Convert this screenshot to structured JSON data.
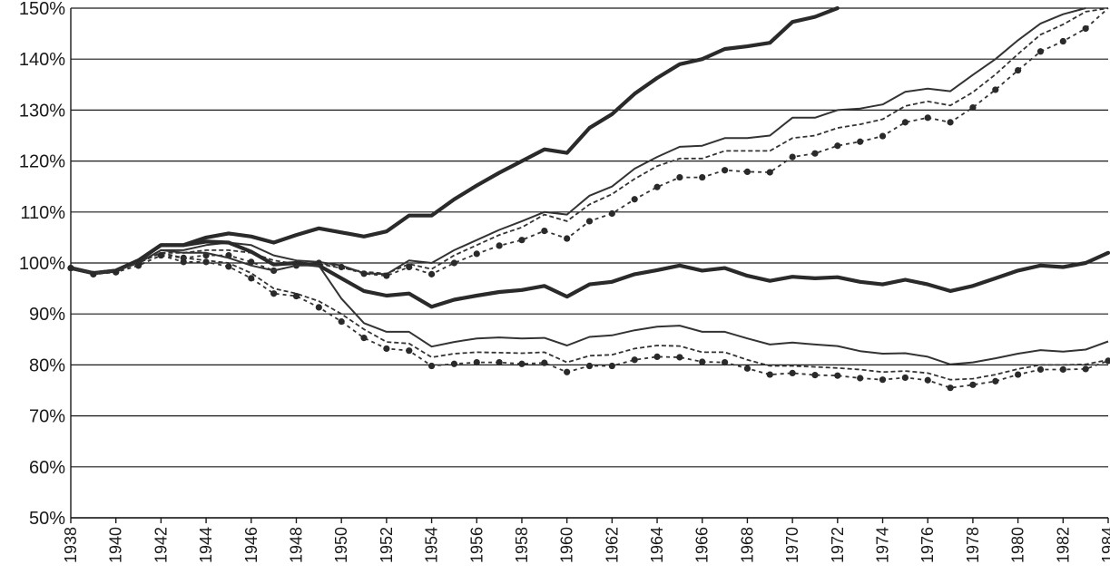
{
  "chart_data": {
    "type": "line",
    "title": "",
    "xlabel": "",
    "ylabel": "",
    "xlim": [
      1938,
      1984
    ],
    "ylim": [
      50,
      150
    ],
    "y_ticks": [
      "50%",
      "60%",
      "70%",
      "80%",
      "90%",
      "100%",
      "110%",
      "120%",
      "130%",
      "140%",
      "150%"
    ],
    "x_ticks": [
      "1938",
      "1940",
      "1942",
      "1944",
      "1946",
      "1948",
      "1950",
      "1952",
      "1954",
      "1956",
      "1958",
      "1960",
      "1962",
      "1964",
      "1966",
      "1968",
      "1970",
      "1972",
      "1974",
      "1976",
      "1978",
      "1980",
      "1982",
      "1984"
    ],
    "grid": true,
    "legend": "none",
    "series": [
      {
        "name": "upper-bold",
        "style": "bold",
        "x": [
          1938,
          1939,
          1940,
          1941,
          1942,
          1943,
          1944,
          1945,
          1946,
          1947,
          1948,
          1949,
          1950,
          1951,
          1952,
          1953,
          1954,
          1955,
          1956,
          1957,
          1958,
          1959,
          1960,
          1961,
          1962,
          1963,
          1964,
          1965,
          1966,
          1967,
          1968,
          1969,
          1970,
          1971,
          1972
        ],
        "values": [
          99,
          98,
          98.5,
          100.5,
          103.5,
          103.5,
          105,
          105.8,
          105.2,
          104,
          105.5,
          106.8,
          106,
          105.2,
          106.2,
          109.3,
          109.3,
          112.5,
          115.2,
          117.7,
          120,
          122.3,
          121.6,
          126.5,
          129.2,
          133.2,
          136.3,
          139,
          140,
          142,
          142.5,
          143.2,
          147.3,
          148.3,
          150
        ]
      },
      {
        "name": "upper-thin",
        "style": "thin",
        "x": [
          1938,
          1939,
          1940,
          1941,
          1942,
          1943,
          1944,
          1945,
          1946,
          1947,
          1948,
          1949,
          1950,
          1951,
          1952,
          1953,
          1954,
          1955,
          1956,
          1957,
          1958,
          1959,
          1960,
          1961,
          1962,
          1963,
          1964,
          1965,
          1966,
          1967,
          1968,
          1969,
          1970,
          1971,
          1972,
          1973,
          1974,
          1975,
          1976,
          1977,
          1978,
          1979,
          1980,
          1981,
          1982,
          1983
        ],
        "values": [
          99,
          98,
          98.5,
          100,
          102.5,
          102.5,
          103.5,
          104,
          103.5,
          101.5,
          100.5,
          100.2,
          99.5,
          98,
          97.8,
          100.5,
          100,
          102.5,
          104.5,
          106.5,
          108.2,
          110,
          109.5,
          113.2,
          115,
          118.5,
          120.8,
          122.8,
          123,
          124.5,
          124.5,
          125,
          128.5,
          128.5,
          130,
          130.3,
          131.1,
          133.6,
          134.2,
          133.7,
          136.9,
          140,
          143.7,
          147,
          148.8,
          150
        ]
      },
      {
        "name": "upper-dashed",
        "style": "dashed",
        "x": [
          1938,
          1939,
          1940,
          1941,
          1942,
          1943,
          1944,
          1945,
          1946,
          1947,
          1948,
          1949,
          1950,
          1951,
          1952,
          1953,
          1954,
          1955,
          1956,
          1957,
          1958,
          1959,
          1960,
          1961,
          1962,
          1963,
          1964,
          1965,
          1966,
          1967,
          1968,
          1969,
          1970,
          1971,
          1972,
          1973,
          1974,
          1975,
          1976,
          1977,
          1978,
          1979,
          1980,
          1981,
          1982,
          1983,
          1984
        ],
        "values": [
          99,
          98,
          98.5,
          100,
          102,
          102,
          102.5,
          102.5,
          102,
          100.5,
          99.8,
          99.8,
          99,
          98.3,
          97.9,
          99.8,
          98.8,
          101.5,
          103.5,
          105.5,
          107,
          109.5,
          108.2,
          111.5,
          113.5,
          116.5,
          119,
          120.5,
          120.5,
          122,
          122,
          122,
          124.5,
          125,
          126.5,
          127.2,
          128.2,
          130.8,
          131.7,
          130.9,
          133.5,
          137,
          141,
          144.8,
          146.8,
          149.3,
          150
        ]
      },
      {
        "name": "upper-dotted",
        "style": "dotted",
        "markers": true,
        "x": [
          1938,
          1939,
          1940,
          1941,
          1942,
          1943,
          1944,
          1945,
          1946,
          1947,
          1948,
          1949,
          1950,
          1951,
          1952,
          1953,
          1954,
          1955,
          1956,
          1957,
          1958,
          1959,
          1960,
          1961,
          1962,
          1963,
          1964,
          1965,
          1966,
          1967,
          1968,
          1969,
          1970,
          1971,
          1972,
          1973,
          1974,
          1975,
          1976,
          1977,
          1978,
          1979,
          1980,
          1981,
          1982,
          1983,
          1984
        ],
        "values": [
          99,
          97.8,
          98.2,
          99.5,
          101.5,
          101,
          101.5,
          101.5,
          100.2,
          98.5,
          99.5,
          100,
          99.2,
          97.9,
          97.5,
          99.2,
          97.8,
          100,
          101.8,
          103.4,
          104.5,
          106.3,
          104.8,
          108.2,
          109.7,
          112.5,
          114.9,
          116.8,
          116.8,
          118.2,
          117.9,
          117.8,
          120.8,
          121.5,
          123,
          123.8,
          124.9,
          127.6,
          128.5,
          127.6,
          130.5,
          134,
          137.8,
          141.5,
          143.5,
          146,
          150
        ]
      },
      {
        "name": "middle-bold",
        "style": "bold",
        "x": [
          1938,
          1939,
          1940,
          1941,
          1942,
          1943,
          1944,
          1945,
          1946,
          1947,
          1948,
          1949,
          1950,
          1951,
          1952,
          1953,
          1954,
          1955,
          1956,
          1957,
          1958,
          1959,
          1960,
          1961,
          1962,
          1963,
          1964,
          1965,
          1966,
          1967,
          1968,
          1969,
          1970,
          1971,
          1972,
          1973,
          1974,
          1975,
          1976,
          1977,
          1978,
          1979,
          1980,
          1981,
          1982,
          1983,
          1984
        ],
        "values": [
          99,
          98,
          98.5,
          100.5,
          103.5,
          103.5,
          104.2,
          104,
          102.2,
          99.7,
          100,
          99.5,
          97,
          94.5,
          93.6,
          94,
          91.4,
          92.8,
          93.6,
          94.3,
          94.7,
          95.5,
          93.4,
          95.8,
          96.3,
          97.8,
          98.6,
          99.5,
          98.5,
          99,
          97.5,
          96.5,
          97.3,
          97,
          97.2,
          96.3,
          95.8,
          96.7,
          95.8,
          94.5,
          95.5,
          97,
          98.5,
          99.5,
          99.2,
          100,
          102
        ]
      },
      {
        "name": "lower-thin",
        "style": "thin",
        "x": [
          1938,
          1939,
          1940,
          1941,
          1942,
          1943,
          1944,
          1945,
          1946,
          1947,
          1948,
          1949,
          1950,
          1951,
          1952,
          1953,
          1954,
          1955,
          1956,
          1957,
          1958,
          1959,
          1960,
          1961,
          1962,
          1963,
          1964,
          1965,
          1966,
          1967,
          1968,
          1969,
          1970,
          1971,
          1972,
          1973,
          1974,
          1975,
          1976,
          1977,
          1978,
          1979,
          1980,
          1981,
          1982,
          1983,
          1984
        ],
        "values": [
          99,
          98,
          98.5,
          100,
          102.5,
          102,
          102,
          101,
          99.5,
          98.5,
          99.5,
          99.5,
          93,
          88.2,
          86.5,
          86.5,
          83.6,
          84.5,
          85.2,
          85.4,
          85.2,
          85.3,
          83.8,
          85.5,
          85.8,
          86.8,
          87.5,
          87.7,
          86.5,
          86.5,
          85.2,
          84,
          84.4,
          84,
          83.7,
          82.7,
          82.2,
          82.3,
          81.6,
          80.1,
          80.5,
          81.3,
          82.2,
          82.9,
          82.6,
          83,
          84.6
        ]
      },
      {
        "name": "lower-dashed",
        "style": "dashed",
        "x": [
          1938,
          1939,
          1940,
          1941,
          1942,
          1943,
          1944,
          1945,
          1946,
          1947,
          1948,
          1949,
          1950,
          1951,
          1952,
          1953,
          1954,
          1955,
          1956,
          1957,
          1958,
          1959,
          1960,
          1961,
          1962,
          1963,
          1964,
          1965,
          1966,
          1967,
          1968,
          1969,
          1970,
          1971,
          1972,
          1973,
          1974,
          1975,
          1976,
          1977,
          1978,
          1979,
          1980,
          1981,
          1982,
          1983,
          1984
        ],
        "values": [
          99,
          98,
          98.5,
          100,
          102,
          101,
          100.5,
          100,
          98,
          95,
          94,
          92.5,
          90,
          87,
          84.5,
          84.2,
          81.5,
          82.2,
          82.5,
          82.4,
          82.3,
          82.5,
          80.5,
          81.8,
          82,
          83.2,
          83.8,
          83.7,
          82.5,
          82.5,
          81,
          79.8,
          79.8,
          79.6,
          79.4,
          79.1,
          78.6,
          78.8,
          78.4,
          77.1,
          77.3,
          78.1,
          79.2,
          80,
          80,
          80.1,
          81
        ]
      },
      {
        "name": "lower-dotted",
        "style": "dotted",
        "markers": true,
        "x": [
          1938,
          1939,
          1940,
          1941,
          1942,
          1943,
          1944,
          1945,
          1946,
          1947,
          1948,
          1949,
          1950,
          1951,
          1952,
          1953,
          1954,
          1955,
          1956,
          1957,
          1958,
          1959,
          1960,
          1961,
          1962,
          1963,
          1964,
          1965,
          1966,
          1967,
          1968,
          1969,
          1970,
          1971,
          1972,
          1973,
          1974,
          1975,
          1976,
          1977,
          1978,
          1979,
          1980,
          1981,
          1982,
          1983,
          1984
        ],
        "values": [
          99,
          97.8,
          98.2,
          99.5,
          101.5,
          100.2,
          100.2,
          99.3,
          97,
          94,
          93.5,
          91.3,
          88.5,
          85.3,
          83.2,
          82.8,
          79.8,
          80.2,
          80.5,
          80.5,
          80.2,
          80.4,
          78.6,
          79.8,
          79.8,
          81,
          81.6,
          81.5,
          80.6,
          80.5,
          79.3,
          78.1,
          78.4,
          78,
          77.9,
          77.4,
          77.1,
          77.5,
          77,
          75.5,
          76.1,
          76.8,
          78.1,
          79.1,
          79.1,
          79.2,
          80.8
        ]
      }
    ]
  }
}
